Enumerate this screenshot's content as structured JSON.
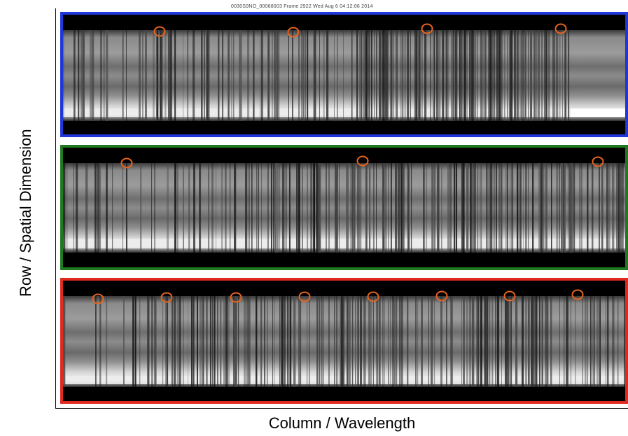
{
  "figure": {
    "header_text": "0030S9NO_00068003 Frame 2922 Wed Aug 6 04:12:06 2014",
    "y_axis_label": "Row / Spatial Dimension",
    "x_axis_label": "Column / Wavelength"
  },
  "panels": [
    {
      "id": "top",
      "border_color": "#1f36d9",
      "circle_count": 4
    },
    {
      "id": "middle",
      "border_color": "#1f7a1f",
      "circle_count": 3
    },
    {
      "id": "bottom",
      "border_color": "#e02a1f",
      "circle_count": 8
    }
  ],
  "marker_color": "#e8641e"
}
